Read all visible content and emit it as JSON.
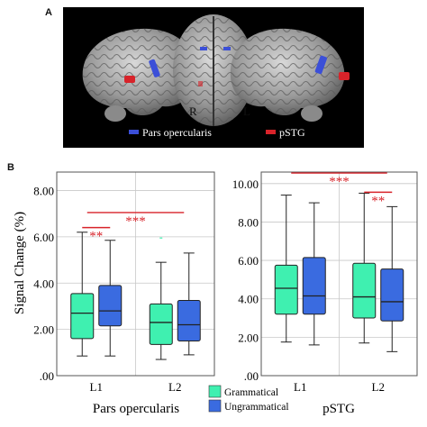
{
  "panel_a": {
    "letter": "A",
    "right_label": "R",
    "left_label": "L",
    "legend": [
      {
        "label": "Pars opercularis",
        "color": "#3b4fd8"
      },
      {
        "label": "pSTG",
        "color": "#d8232a"
      }
    ]
  },
  "panel_b": {
    "letter": "B",
    "legend": [
      {
        "label": "Grammatical",
        "color": "#3ff0b0"
      },
      {
        "label": "Ungrammatical",
        "color": "#3a6be0"
      }
    ]
  },
  "chart_data": [
    {
      "type": "box",
      "title": "Pars opercularis",
      "ylabel": "Signal Change (%)",
      "ylim": [
        0,
        8.8
      ],
      "yticks": [
        0,
        2,
        4,
        6,
        8
      ],
      "ytick_labels": [
        ".00",
        "2.00",
        "4.00",
        "6.00",
        "8.00"
      ],
      "categories": [
        "L1",
        "L2"
      ],
      "grid": true,
      "series": [
        {
          "name": "Grammatical",
          "color": "#3ff0b0",
          "boxes": [
            {
              "category": "L1",
              "min": 0.85,
              "q1": 1.6,
              "median": 2.7,
              "q3": 3.55,
              "max": 6.2
            },
            {
              "category": "L2",
              "min": 0.7,
              "q1": 1.35,
              "median": 2.3,
              "q3": 3.1,
              "max": 4.9,
              "outliers": [
                5.95
              ]
            }
          ]
        },
        {
          "name": "Ungrammatical",
          "color": "#3a6be0",
          "boxes": [
            {
              "category": "L1",
              "min": 0.85,
              "q1": 2.15,
              "median": 2.8,
              "q3": 3.9,
              "max": 5.85
            },
            {
              "category": "L2",
              "min": 0.9,
              "q1": 1.5,
              "median": 2.2,
              "q3": 3.25,
              "max": 5.3
            }
          ]
        }
      ],
      "significance": [
        {
          "label": "**",
          "from": "L1 Grammatical",
          "to": "L1 Ungrammatical",
          "y": 6.4
        },
        {
          "label": "***",
          "from": "L1",
          "to": "L2",
          "y": 7.05
        }
      ]
    },
    {
      "type": "box",
      "title": "pSTG",
      "ylabel": "",
      "ylim": [
        0,
        10.6
      ],
      "yticks": [
        0,
        2,
        4,
        6,
        8,
        10
      ],
      "ytick_labels": [
        ".00",
        "2.00",
        "4.00",
        "6.00",
        "8.00",
        "10.00"
      ],
      "categories": [
        "L1",
        "L2"
      ],
      "grid": true,
      "series": [
        {
          "name": "Grammatical",
          "color": "#3ff0b0",
          "boxes": [
            {
              "category": "L1",
              "min": 1.75,
              "q1": 3.2,
              "median": 4.55,
              "q3": 5.75,
              "max": 9.4
            },
            {
              "category": "L2",
              "min": 1.7,
              "q1": 3.0,
              "median": 4.1,
              "q3": 5.85,
              "max": 9.5
            }
          ]
        },
        {
          "name": "Ungrammatical",
          "color": "#3a6be0",
          "boxes": [
            {
              "category": "L1",
              "min": 1.6,
              "q1": 3.2,
              "median": 4.15,
              "q3": 6.15,
              "max": 9.0
            },
            {
              "category": "L2",
              "min": 1.25,
              "q1": 2.85,
              "median": 3.85,
              "q3": 5.55,
              "max": 8.8
            }
          ]
        }
      ],
      "significance": [
        {
          "label": "***",
          "from": "L1",
          "to": "L2",
          "y": 10.55
        },
        {
          "label": "**",
          "from": "L2 Grammatical",
          "to": "L2 Ungrammatical",
          "y": 9.55
        }
      ]
    }
  ]
}
